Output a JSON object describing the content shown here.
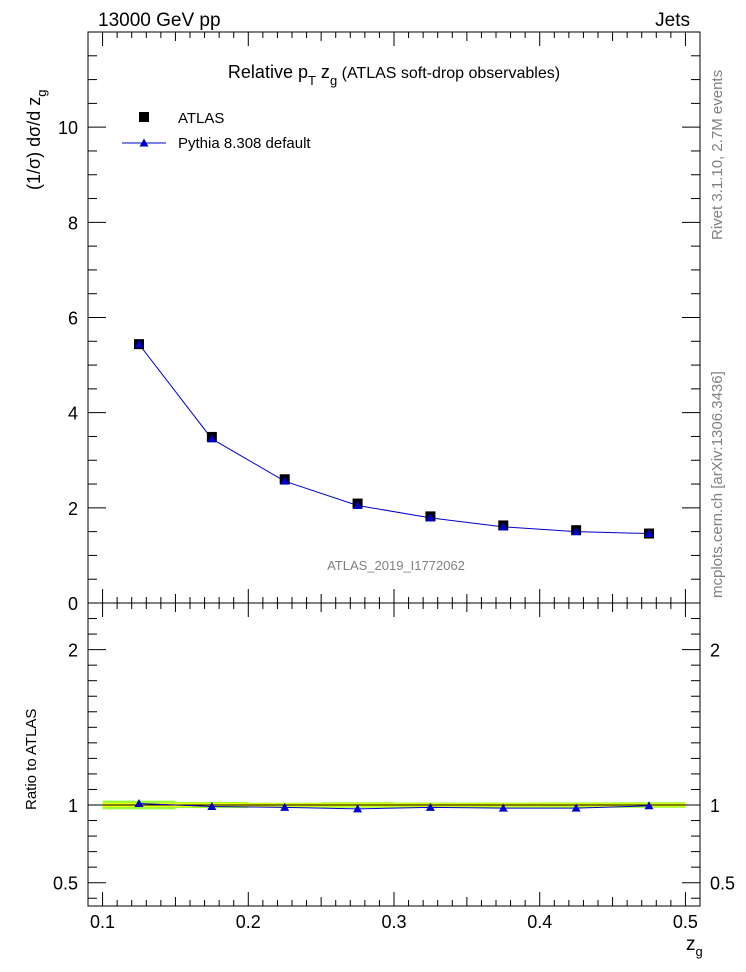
{
  "header": {
    "left": "13000 GeV pp",
    "right": "Jets"
  },
  "title": {
    "main": "Relative p",
    "sub_T": "T",
    "mid": " z",
    "sub_g": "g",
    "tail": " (ATLAS soft-drop observables)"
  },
  "side_labels": {
    "rivet": "Rivet 3.1.10,  2.7M events",
    "mcplots": "mcplots.cern.ch [arXiv:1306.3436]"
  },
  "watermark": "ATLAS_2019_I1772062",
  "axes": {
    "ylabel_main_prefix": "(1/σ) dσ/d z",
    "ylabel_main_sub": "g",
    "ylabel_ratio": "Ratio to ATLAS",
    "xlabel": "z",
    "xlabel_sub": "g"
  },
  "colors": {
    "data": "#000000",
    "mc": "#0000cc",
    "band_inner": "#ffff00",
    "band_outer": "#99ff33"
  },
  "chart_data": [
    {
      "type": "scatter",
      "panel": "main",
      "xlim": [
        0.09,
        0.51
      ],
      "ylim": [
        0,
        12
      ],
      "x_ticks": [
        0.1,
        0.2,
        0.3,
        0.4,
        0.5
      ],
      "y_ticks": [
        0,
        2,
        4,
        6,
        8,
        10
      ],
      "y_tick_labels": [
        "0",
        "2",
        "4",
        "6",
        "8",
        "10"
      ],
      "legend_position": "top-left",
      "series": [
        {
          "name": "ATLAS",
          "marker": "square",
          "x": [
            0.125,
            0.175,
            0.225,
            0.275,
            0.325,
            0.375,
            0.425,
            0.475
          ],
          "values": [
            5.44,
            3.49,
            2.6,
            2.09,
            1.82,
            1.63,
            1.53,
            1.46
          ]
        },
        {
          "name": "Pythia 8.308 default",
          "marker": "triangle",
          "x": [
            0.125,
            0.175,
            0.225,
            0.275,
            0.325,
            0.375,
            0.425,
            0.475
          ],
          "values": [
            5.44,
            3.45,
            2.56,
            2.05,
            1.79,
            1.6,
            1.5,
            1.46
          ]
        }
      ]
    },
    {
      "type": "line",
      "panel": "ratio",
      "xlim": [
        0.09,
        0.51
      ],
      "ylim": [
        0.35,
        2.3
      ],
      "x_ticks": [
        0.1,
        0.2,
        0.3,
        0.4,
        0.5
      ],
      "x_tick_labels": [
        "0.1",
        "0.2",
        "0.3",
        "0.4",
        "0.5"
      ],
      "y_ticks": [
        0.5,
        1,
        2
      ],
      "y_tick_labels": [
        "0.5",
        "1",
        "2"
      ],
      "band": {
        "x_edges": [
          0.1,
          0.15,
          0.2,
          0.25,
          0.3,
          0.35,
          0.4,
          0.45,
          0.5
        ],
        "inner": [
          0.012,
          0.012,
          0.01,
          0.01,
          0.01,
          0.01,
          0.01,
          0.01
        ],
        "outer": [
          0.028,
          0.02,
          0.015,
          0.018,
          0.016,
          0.016,
          0.017,
          0.018
        ]
      },
      "series": [
        {
          "name": "Pythia 8.308 default",
          "x": [
            0.125,
            0.175,
            0.225,
            0.275,
            0.325,
            0.375,
            0.425,
            0.475
          ],
          "values": [
            1.01,
            0.99,
            0.985,
            0.975,
            0.985,
            0.98,
            0.98,
            0.995
          ]
        }
      ]
    }
  ]
}
